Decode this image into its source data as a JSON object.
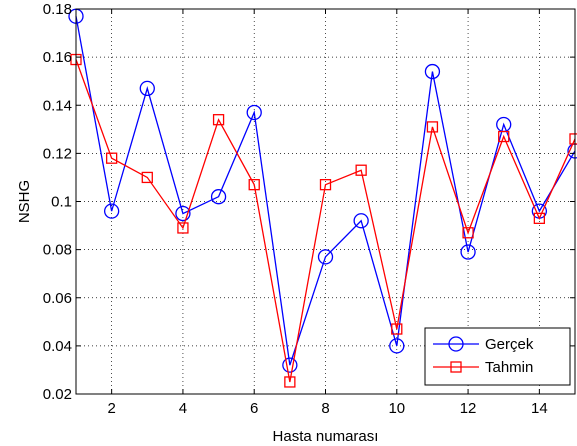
{
  "chart_data": {
    "type": "line",
    "xlabel": "Hasta numarası",
    "ylabel": "NSHG",
    "xlim": [
      1,
      15
    ],
    "ylim": [
      0.02,
      0.18
    ],
    "x_ticks": [
      2,
      4,
      6,
      8,
      10,
      12,
      14
    ],
    "y_ticks": [
      0.02,
      0.04,
      0.06,
      0.08,
      0.1,
      0.12,
      0.14,
      0.16,
      0.18
    ],
    "y_tick_labels": [
      "0.02",
      "0.04",
      "0.06",
      "0.08",
      "0.1",
      "0.12",
      "0.14",
      "0.16",
      "0.18"
    ],
    "grid": true,
    "legend_position": "bottom-right",
    "x": [
      1,
      2,
      3,
      4,
      5,
      6,
      7,
      8,
      9,
      10,
      11,
      12,
      13,
      14,
      15
    ],
    "series": [
      {
        "name": "Gerçek",
        "color": "#0000ff",
        "marker": "circle",
        "values": [
          0.177,
          0.096,
          0.147,
          0.095,
          0.102,
          0.137,
          0.032,
          0.077,
          0.092,
          0.04,
          0.154,
          0.079,
          0.132,
          0.096,
          0.121
        ]
      },
      {
        "name": "Tahmin",
        "color": "#ff0000",
        "marker": "square",
        "values": [
          0.159,
          0.118,
          0.11,
          0.089,
          0.134,
          0.107,
          0.025,
          0.107,
          0.113,
          0.047,
          0.131,
          0.087,
          0.127,
          0.093,
          0.126
        ]
      }
    ]
  }
}
